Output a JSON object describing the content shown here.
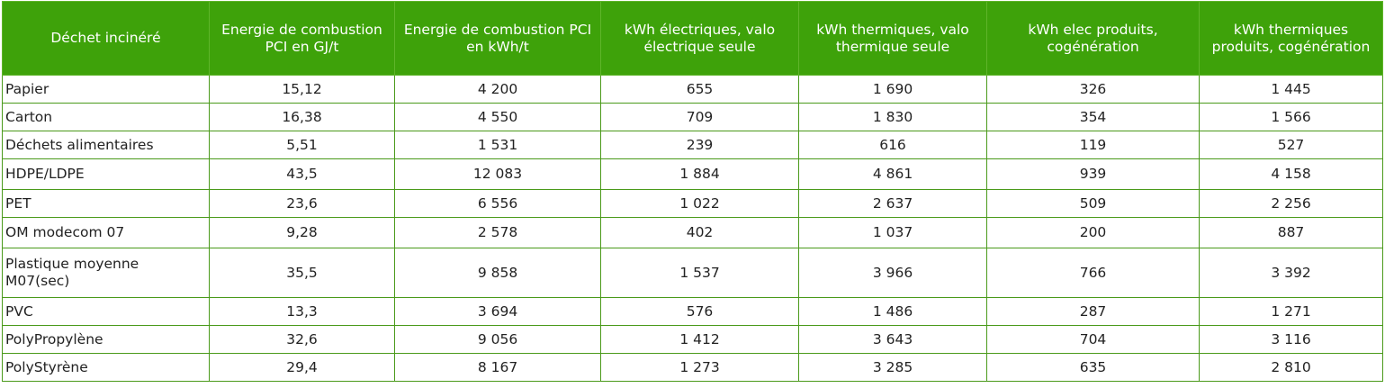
{
  "table": {
    "headers": [
      "Déchet incinéré",
      "Energie de combustion PCI en GJ/t",
      "Energie de combustion PCI en kWh/t",
      "kWh électriques, valo électrique seule",
      "kWh thermiques, valo thermique seule",
      "kWh elec produits, cogénération",
      "kWh thermiques produits, cogénération"
    ],
    "rows": [
      [
        "Papier",
        "15,12",
        "4 200",
        "655",
        "1 690",
        "326",
        "1 445"
      ],
      [
        "Carton",
        "16,38",
        "4 550",
        "709",
        "1 830",
        "354",
        "1 566"
      ],
      [
        "Déchets alimentaires",
        "5,51",
        "1 531",
        "239",
        "616",
        "119",
        "527"
      ],
      [
        "HDPE/LDPE",
        "43,5",
        "12 083",
        "1 884",
        "4 861",
        "939",
        "4 158"
      ],
      [
        "PET",
        "23,6",
        "6 556",
        "1 022",
        "2 637",
        "509",
        "2 256"
      ],
      [
        "OM modecom 07",
        "9,28",
        "2 578",
        "402",
        "1 037",
        "200",
        "887"
      ],
      [
        "Plastique moyenne M07(sec)",
        "35,5",
        "9 858",
        "1 537",
        "3 966",
        "766",
        "3 392"
      ],
      [
        "PVC",
        "13,3",
        "3 694",
        "576",
        "1 486",
        "287",
        "1 271"
      ],
      [
        "PolyPropylène",
        "32,6",
        "9 056",
        "1 412",
        "3 643",
        "704",
        "3 116"
      ],
      [
        "PolyStyrène",
        "29,4",
        "8 167",
        "1 273",
        "3 285",
        "635",
        "2 810"
      ]
    ]
  },
  "colors": {
    "header_bg": "#3ea20a",
    "border": "#4a9a1a"
  }
}
